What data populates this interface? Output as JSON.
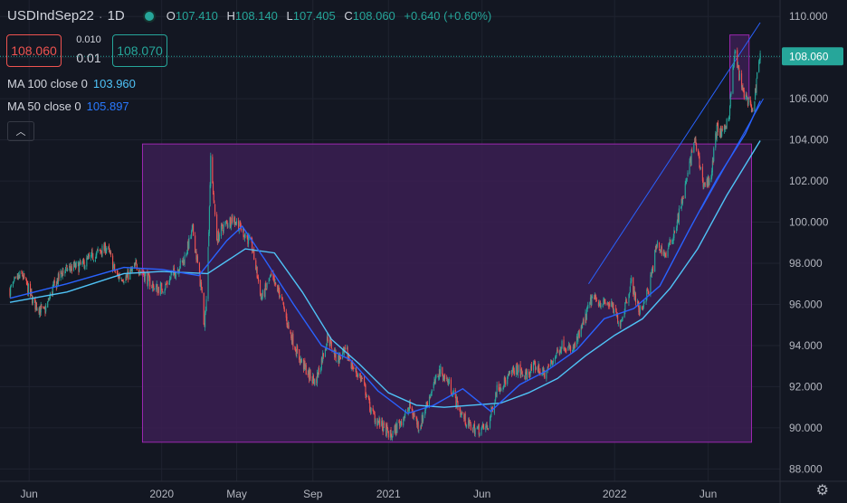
{
  "header": {
    "symbol": "USDIndSep22",
    "interval": "1D",
    "open_label": "O",
    "open": "107.410",
    "high_label": "H",
    "high": "108.140",
    "low_label": "L",
    "low": "107.405",
    "close_label": "C",
    "close": "108.060",
    "change": "+0.640 (+0.60%)"
  },
  "trade": {
    "sell_price": "108.060",
    "buy_price": "108.070",
    "spread_top": "0.010",
    "spread_bottom": "0.01"
  },
  "indicators": [
    {
      "name": "MA 100 close 0",
      "value": "103.960",
      "color": "#4fc3f7"
    },
    {
      "name": "MA 50 close 0",
      "value": "105.897",
      "color": "#2962ff"
    }
  ],
  "colors": {
    "background": "#131722",
    "up": "#26a69a",
    "down": "#ef5350",
    "box_fill": "#3b1f52",
    "box_stroke": "#9c27b0",
    "trendline": "#2962ff",
    "price_tag": "#26a69a"
  },
  "chart_data": {
    "type": "candlestick",
    "y_ticks": [
      "110.000",
      "108.000",
      "106.000",
      "104.000",
      "102.000",
      "100.000",
      "98.000",
      "96.000",
      "94.000",
      "92.000",
      "90.000",
      "88.000"
    ],
    "x_ticks": [
      "Jun",
      "2020",
      "May",
      "Sep",
      "2021",
      "Jun",
      "2022",
      "Jun"
    ],
    "ylim": [
      87.4,
      110.8
    ],
    "last_price": "108.060",
    "price_series": [
      [
        "2019-05-01",
        96.7
      ],
      [
        "2019-05-20",
        97.5
      ],
      [
        "2019-06-10",
        96.0
      ],
      [
        "2019-06-25",
        95.6
      ],
      [
        "2019-07-10",
        96.8
      ],
      [
        "2019-07-25",
        97.6
      ],
      [
        "2019-08-10",
        97.8
      ],
      [
        "2019-08-25",
        97.9
      ],
      [
        "2019-09-10",
        98.3
      ],
      [
        "2019-09-25",
        98.6
      ],
      [
        "2019-10-05",
        98.8
      ],
      [
        "2019-10-20",
        97.4
      ],
      [
        "2019-11-05",
        97.3
      ],
      [
        "2019-11-20",
        97.9
      ],
      [
        "2019-12-05",
        97.4
      ],
      [
        "2019-12-20",
        96.8
      ],
      [
        "2020-01-05",
        96.8
      ],
      [
        "2020-01-20",
        97.5
      ],
      [
        "2020-02-05",
        98.1
      ],
      [
        "2020-02-20",
        99.6
      ],
      [
        "2020-03-05",
        96.7
      ],
      [
        "2020-03-10",
        94.9
      ],
      [
        "2020-03-15",
        97.6
      ],
      [
        "2020-03-20",
        103.0
      ],
      [
        "2020-03-30",
        99.2
      ],
      [
        "2020-04-10",
        99.8
      ],
      [
        "2020-04-25",
        100.2
      ],
      [
        "2020-05-10",
        99.6
      ],
      [
        "2020-05-25",
        98.9
      ],
      [
        "2020-06-10",
        96.3
      ],
      [
        "2020-06-25",
        97.3
      ],
      [
        "2020-07-10",
        96.5
      ],
      [
        "2020-07-25",
        94.7
      ],
      [
        "2020-08-10",
        93.4
      ],
      [
        "2020-08-25",
        92.6
      ],
      [
        "2020-09-05",
        92.2
      ],
      [
        "2020-09-25",
        94.4
      ],
      [
        "2020-10-10",
        93.3
      ],
      [
        "2020-10-25",
        93.7
      ],
      [
        "2020-11-05",
        92.9
      ],
      [
        "2020-11-20",
        92.3
      ],
      [
        "2020-12-05",
        90.7
      ],
      [
        "2020-12-20",
        90.1
      ],
      [
        "2021-01-05",
        89.6
      ],
      [
        "2021-01-20",
        90.3
      ],
      [
        "2021-02-05",
        91.0
      ],
      [
        "2021-02-20",
        90.0
      ],
      [
        "2021-03-05",
        91.3
      ],
      [
        "2021-03-25",
        92.8
      ],
      [
        "2021-04-10",
        92.1
      ],
      [
        "2021-04-25",
        90.9
      ],
      [
        "2021-05-10",
        90.1
      ],
      [
        "2021-05-25",
        89.9
      ],
      [
        "2021-06-10",
        90.0
      ],
      [
        "2021-06-25",
        91.9
      ],
      [
        "2021-07-10",
        92.3
      ],
      [
        "2021-07-25",
        92.9
      ],
      [
        "2021-08-10",
        92.5
      ],
      [
        "2021-08-25",
        93.0
      ],
      [
        "2021-09-10",
        92.6
      ],
      [
        "2021-09-25",
        93.4
      ],
      [
        "2021-10-10",
        94.1
      ],
      [
        "2021-10-25",
        93.7
      ],
      [
        "2021-11-10",
        94.9
      ],
      [
        "2021-11-25",
        96.3
      ],
      [
        "2021-12-10",
        96.1
      ],
      [
        "2021-12-25",
        96.0
      ],
      [
        "2022-01-10",
        95.1
      ],
      [
        "2022-01-28",
        97.1
      ],
      [
        "2022-02-10",
        95.6
      ],
      [
        "2022-02-25",
        96.7
      ],
      [
        "2022-03-10",
        98.9
      ],
      [
        "2022-03-25",
        98.4
      ],
      [
        "2022-04-10",
        99.8
      ],
      [
        "2022-04-25",
        101.7
      ],
      [
        "2022-05-10",
        104.0
      ],
      [
        "2022-05-25",
        101.8
      ],
      [
        "2022-06-05",
        102.1
      ],
      [
        "2022-06-15",
        104.6
      ],
      [
        "2022-06-25",
        104.2
      ],
      [
        "2022-07-05",
        105.4
      ],
      [
        "2022-07-14",
        108.3
      ],
      [
        "2022-07-25",
        106.5
      ],
      [
        "2022-08-03",
        106.0
      ],
      [
        "2022-08-12",
        105.2
      ],
      [
        "2022-08-20",
        107.4
      ],
      [
        "2022-08-24",
        108.1
      ]
    ],
    "ma50": [
      [
        "2019-05-01",
        96.3
      ],
      [
        "2019-08-01",
        97.0
      ],
      [
        "2019-11-01",
        97.8
      ],
      [
        "2020-01-01",
        97.7
      ],
      [
        "2020-03-01",
        97.4
      ],
      [
        "2020-04-15",
        99.1
      ],
      [
        "2020-05-10",
        99.8
      ],
      [
        "2020-06-15",
        98.2
      ],
      [
        "2020-08-01",
        96.0
      ],
      [
        "2020-09-15",
        94.0
      ],
      [
        "2020-11-01",
        93.3
      ],
      [
        "2020-12-15",
        91.8
      ],
      [
        "2021-02-01",
        90.7
      ],
      [
        "2021-03-15",
        91.1
      ],
      [
        "2021-05-01",
        91.9
      ],
      [
        "2021-06-15",
        90.8
      ],
      [
        "2021-08-01",
        92.1
      ],
      [
        "2021-09-15",
        92.8
      ],
      [
        "2021-11-01",
        93.8
      ],
      [
        "2021-12-15",
        95.3
      ],
      [
        "2022-02-01",
        95.8
      ],
      [
        "2022-03-15",
        96.9
      ],
      [
        "2022-05-01",
        99.6
      ],
      [
        "2022-06-15",
        102.1
      ],
      [
        "2022-07-31",
        104.3
      ],
      [
        "2022-08-24",
        105.897
      ]
    ],
    "ma100": [
      [
        "2019-05-01",
        96.1
      ],
      [
        "2019-08-01",
        96.6
      ],
      [
        "2019-11-01",
        97.5
      ],
      [
        "2020-01-01",
        97.6
      ],
      [
        "2020-03-15",
        97.5
      ],
      [
        "2020-05-15",
        98.7
      ],
      [
        "2020-07-01",
        98.5
      ],
      [
        "2020-08-15",
        96.6
      ],
      [
        "2020-10-01",
        94.3
      ],
      [
        "2020-11-15",
        93.1
      ],
      [
        "2021-01-01",
        91.7
      ],
      [
        "2021-02-15",
        91.1
      ],
      [
        "2021-04-01",
        91.0
      ],
      [
        "2021-05-15",
        91.1
      ],
      [
        "2021-07-01",
        91.2
      ],
      [
        "2021-08-15",
        91.7
      ],
      [
        "2021-10-01",
        92.4
      ],
      [
        "2021-11-15",
        93.5
      ],
      [
        "2022-01-01",
        94.5
      ],
      [
        "2022-02-15",
        95.3
      ],
      [
        "2022-04-01",
        96.8
      ],
      [
        "2022-05-15",
        98.7
      ],
      [
        "2022-07-01",
        101.3
      ],
      [
        "2022-08-24",
        103.96
      ]
    ],
    "drawings": {
      "large_rectangle": {
        "start": "2019-12-01",
        "end": "2022-08-10",
        "top": 103.8,
        "bottom": 89.3
      },
      "small_rectangle": {
        "start": "2022-07-06",
        "end": "2022-08-06",
        "top": 109.1,
        "bottom": 106.0
      },
      "channel_upper": {
        "start": "2021-11-20",
        "start_price": 97.0,
        "end": "2022-08-24",
        "end_price": 109.7
      },
      "channel_lower": {
        "start": "2022-05-20",
        "start_price": 100.6,
        "end": "2022-08-29",
        "end_price": 106.0
      }
    }
  }
}
